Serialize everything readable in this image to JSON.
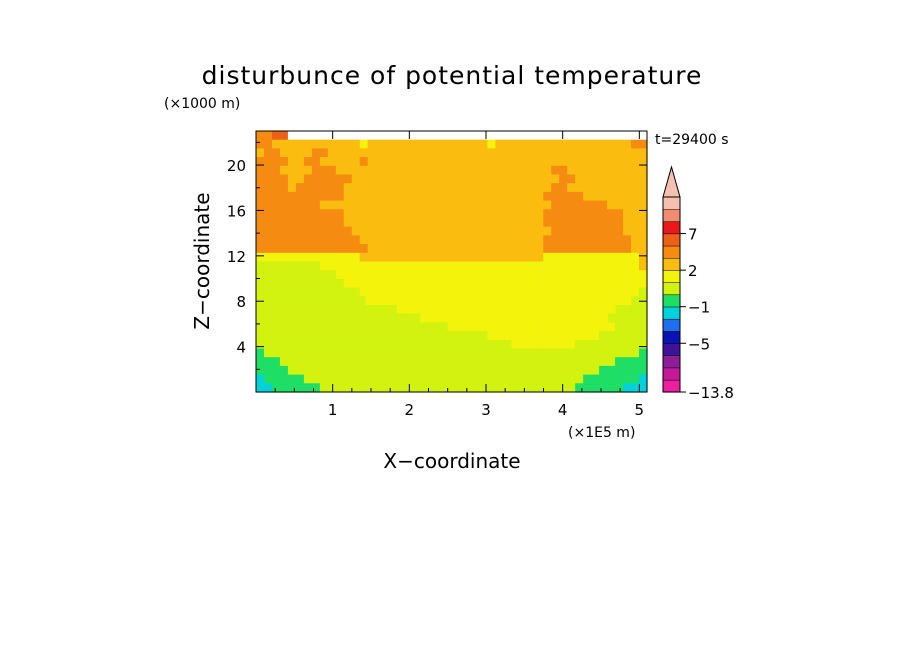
{
  "chart_data": {
    "type": "heatmap",
    "title": "disturbunce of potential temperature",
    "time_label": "t=29400 s",
    "xlabel": "X−coordinate",
    "ylabel": "Z−coordinate",
    "x_unit": "(×1E5 m)",
    "y_unit": "(×1000 m)",
    "xlim": [
      0,
      5.1
    ],
    "ylim": [
      0,
      23
    ],
    "x_ticks": [
      1,
      2,
      3,
      4,
      5
    ],
    "x_tick_labels": [
      "1",
      "2",
      "3",
      "4",
      "5"
    ],
    "y_ticks": [
      4,
      8,
      12,
      16,
      20
    ],
    "y_tick_labels": [
      "4",
      "8",
      "12",
      "16",
      "20"
    ],
    "colorbar": {
      "min": -13.8,
      "max_arrow": true,
      "labels": [
        "7",
        "2",
        "−1",
        "−5",
        "−13.8"
      ],
      "label_values": [
        7,
        2,
        -1,
        -5,
        -13.8
      ],
      "bins": [
        {
          "color": "#ee1e9e"
        },
        {
          "color": "#c31a9b"
        },
        {
          "color": "#8f1d98"
        },
        {
          "color": "#3d1399"
        },
        {
          "color": "#0a14b4"
        },
        {
          "color": "#1f6eee"
        },
        {
          "color": "#00d2dc"
        },
        {
          "color": "#1ede66"
        },
        {
          "color": "#d2f20f"
        },
        {
          "color": "#f3f30c"
        },
        {
          "color": "#fabc0e"
        },
        {
          "color": "#f68b12"
        },
        {
          "color": "#ed6018"
        },
        {
          "color": "#ea1818"
        },
        {
          "color": "#f28c6e"
        },
        {
          "color": "#f6c0b0"
        }
      ]
    },
    "field_rows_top_to_bottom": [
      "BBCCJJJJJJJJJJJJJJJJJJJJJJJJJJJJJJJJJJJJJJJJJJJJJ",
      "BBAAAAAAAAAAA9AAAAAAAAAAAAAAA9AAAAAAAAAAAAAAAAABB",
      "ABBAAAABBAAAAAAAAAAAAAAAAAAAAAAAAAAAAAAAAAAAAAAAA",
      "BBBBAABBAAAAABAAAAAAAAAAAAAAAAAAAAAAAAAAAAAAAAAAA",
      "BBBAAAABBBAAAAAAAAAAAAAAAAAAAAAAAAAAABBAAAAAAAAAA",
      "BBBBAABBBBBBAAAAAAAAAAAAAAAAAAAAAAAAAABBAAAAAAAAA",
      "BBBBABBBBBBAAAAAAAAAAAAAAAAAAAAAAAAAABBAAAAAAAAAA",
      "BBBBBBBBBBBAAAAAAAAAAAAAAAAAAAAAAAAABBBBBAAAAAAAA",
      "BBBBBBBBAAAAAAAAAAAAAAAAAAAAAAAAAAAAABBBBBBBAAAAA",
      "BBBBBBBBBBBAAAAAAAAAAAAAAAAAAAAAAAAABBBBBBBBBBAAA",
      "BBBBBBBBBBBAAAAAAAAAAAAAAAAAAAAAAAAABBBBBBBBBBAAA",
      "BBBBBBBBBBBBAAAAAAAAAAAAAAAAAAAAAAAAABBBBBBBBBAAA",
      "BBBBBBBBBBBBBAAAAAAAAAAAAAAAAAAAAAAABBBBBBBBBBBAA",
      "BBBBBBBBBBBBBBAAAAAAAAAAAAAAAAAAAAAABBBBBBBBBBBAA",
      "9999999999999AAAAAAAAAAAAAAAAAAAAAAA999999999999A",
      "888888889999999999999999999999999999999999999999A",
      "8888888888999999999999999999999999999999999999999",
      "8888888888899999999999999999999999999999999999999",
      "8888888888888999999999999999999999999999999999998",
      "88888888888888999999999999999999999999999999999988",
      "88888888888888888899999999999999999999999999998888",
      "88888888888888888888899999999999999999999999988888",
      "8888888888888888888888889999999999999999999998888",
      "8888888888888888888888888888899999999999999888888",
      "8888888888888888888888888888888899999999888888888",
      "7888888888888888888888888888888888888888888888887",
      "7778888888888888888888888888888888888888888887777",
      "7777888888888888888888888888888888888888888777777",
      "6777778888888888888888888888888888888888877777776",
      "6677777788888888888888888888888888888888777777666"
    ]
  }
}
